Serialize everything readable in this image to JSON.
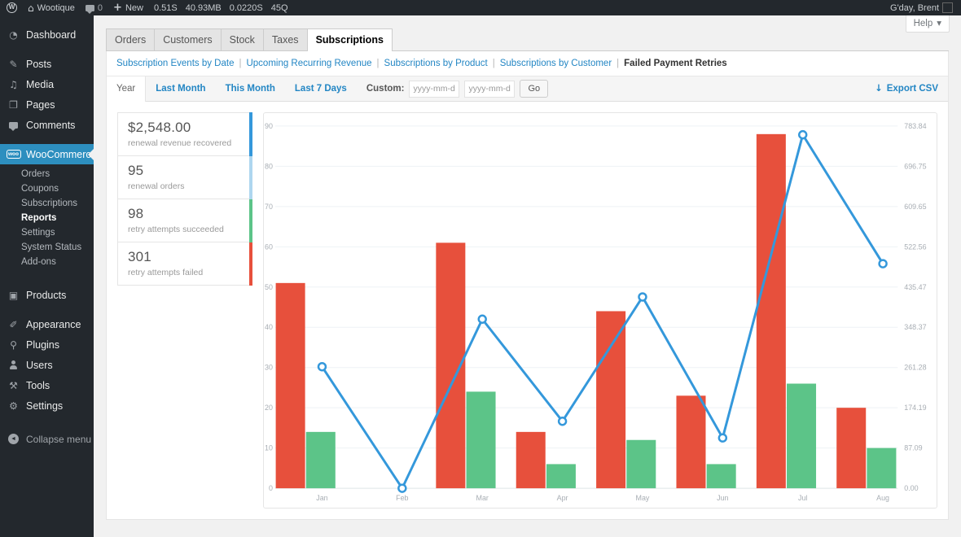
{
  "admin_bar": {
    "site_name": "Wootique",
    "comments_count": "0",
    "new_label": "New",
    "stats": [
      "0.51S",
      "40.93MB",
      "0.0220S",
      "45Q"
    ],
    "greeting": "G'day, Brent"
  },
  "help": {
    "label": "Help"
  },
  "sidebar": {
    "items": [
      {
        "id": "dashboard",
        "label": "Dashboard",
        "icon": "dashboard-icon"
      },
      {
        "id": "posts",
        "label": "Posts",
        "icon": "pin-icon",
        "sep_before": true
      },
      {
        "id": "media",
        "label": "Media",
        "icon": "media-icon"
      },
      {
        "id": "pages",
        "label": "Pages",
        "icon": "pages-icon"
      },
      {
        "id": "comments",
        "label": "Comments",
        "icon": "comments-icon"
      },
      {
        "id": "woocommerce",
        "label": "WooCommerce",
        "icon": "woocommerce-icon",
        "active": true,
        "sep_before": true,
        "submenu": [
          "Orders",
          "Coupons",
          "Subscriptions",
          "Reports",
          "Settings",
          "System Status",
          "Add-ons"
        ],
        "active_submenu": "Reports"
      },
      {
        "id": "products",
        "label": "Products",
        "icon": "products-icon",
        "sep_before": true
      },
      {
        "id": "appearance",
        "label": "Appearance",
        "icon": "appearance-icon",
        "sep_before": true
      },
      {
        "id": "plugins",
        "label": "Plugins",
        "icon": "plugins-icon"
      },
      {
        "id": "users",
        "label": "Users",
        "icon": "users-icon"
      },
      {
        "id": "tools",
        "label": "Tools",
        "icon": "tools-icon"
      },
      {
        "id": "settings",
        "label": "Settings",
        "icon": "settings-icon"
      }
    ],
    "collapse_label": "Collapse menu"
  },
  "tabs": {
    "items": [
      "Orders",
      "Customers",
      "Stock",
      "Taxes",
      "Subscriptions"
    ],
    "active": "Subscriptions"
  },
  "subnav": {
    "items": [
      "Subscription Events by Date",
      "Upcoming Recurring Revenue",
      "Subscriptions by Product",
      "Subscriptions by Customer",
      "Failed Payment Retries"
    ],
    "active": "Failed Payment Retries"
  },
  "toolbar": {
    "ranges": [
      "Year",
      "Last Month",
      "This Month",
      "Last 7 Days"
    ],
    "active_range": "Year",
    "custom_label": "Custom:",
    "date_placeholder": "yyyy-mm-dd",
    "date_from_value": "",
    "date_to_value": "",
    "go_label": "Go",
    "export_label": "Export CSV"
  },
  "legend": [
    {
      "value": "$2,548.00",
      "label": "renewal revenue recovered",
      "color": "#3498db"
    },
    {
      "value": "95",
      "label": "renewal orders",
      "color": "#aed6ef"
    },
    {
      "value": "98",
      "label": "retry attempts succeeded",
      "color": "#5cc488"
    },
    {
      "value": "301",
      "label": "retry attempts failed",
      "color": "#e7503c"
    }
  ],
  "icons": {
    "home-icon": "⌂",
    "plus-icon": "+",
    "dashboard-icon": "◔",
    "pin-icon": "✎",
    "media-icon": "♫",
    "pages-icon": "❐",
    "comments-icon": "css-bubble",
    "woocommerce-icon": "css-woo",
    "woo-badge-text": "woo",
    "products-icon": "▣",
    "appearance-icon": "✐",
    "plugins-icon": "⚲",
    "users-icon": "css-person",
    "tools-icon": "⚒",
    "settings-icon": "⚙",
    "collapse-icon": "◄",
    "download-icon": "↓",
    "chevron-down-icon": "▾",
    "wp-logo-text": "W"
  },
  "colors": {
    "menu_active": "#2d8fbf",
    "link": "#2386c4",
    "grid": "#eef2f5",
    "axis_line": "#dfe5e8"
  },
  "chart_data": {
    "type": "bar+line",
    "categories": [
      "Jan",
      "Feb",
      "Mar",
      "Apr",
      "May",
      "Jun",
      "Jul",
      "Aug"
    ],
    "series": [
      {
        "name": "retry attempts failed",
        "type": "bar",
        "axis": "left",
        "color": "#e7503c",
        "values": [
          51,
          0,
          61,
          14,
          44,
          23,
          88,
          20
        ]
      },
      {
        "name": "retry attempts succeeded",
        "type": "bar",
        "axis": "left",
        "color": "#5cc488",
        "values": [
          14,
          0,
          24,
          6,
          12,
          6,
          26,
          10
        ]
      },
      {
        "name": "renewal revenue recovered",
        "type": "line",
        "axis": "right",
        "color": "#3498db",
        "values": [
          263,
          0,
          366,
          145,
          414,
          109,
          765,
          486
        ]
      }
    ],
    "left_axis": {
      "ticks": [
        0,
        10,
        20,
        30,
        40,
        50,
        60,
        70,
        80,
        90
      ],
      "max": 90
    },
    "right_axis": {
      "ticks": [
        "0.00",
        "87.09",
        "174.19",
        "261.28",
        "348.37",
        "435.47",
        "522.56",
        "609.65",
        "696.75",
        "783.84"
      ],
      "max": 783.84
    },
    "grid": true,
    "legend_position": "none"
  }
}
